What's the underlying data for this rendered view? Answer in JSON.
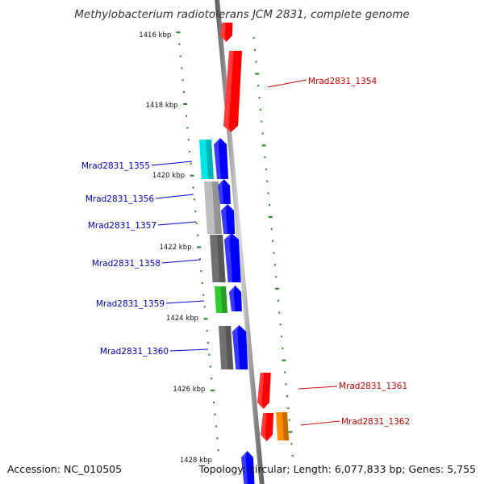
{
  "title": "Methylobacterium radiotolerans JCM 2831, complete genome",
  "accession": "Accession: NC_010505",
  "topology": "Topology: circular; Length: 6,077,833 bp; Genes: 5,755",
  "colors": {
    "backbone": "#8a8a8a",
    "tick": "#2e8b2e",
    "forward_gene": "#0000ff",
    "reverse_gene": "#ff0000",
    "label_forward": "#0000cc",
    "label_reverse": "#cc0000",
    "cog_cyan": "#00e5e5",
    "cog_lightgray": "#bdbdbd",
    "cog_darkgray": "#707070",
    "cog_green": "#2ecc2e",
    "cog_orange": "#ff8c00"
  },
  "scale_labels": [
    "1416 kbp",
    "1418 kbp",
    "1420 kbp",
    "1422 kbp",
    "1424 kbp",
    "1426 kbp",
    "1428 kbp"
  ],
  "gene_labels": [
    {
      "id": "Mrad2831_1354",
      "strand": "reverse"
    },
    {
      "id": "Mrad2831_1355",
      "strand": "forward"
    },
    {
      "id": "Mrad2831_1356",
      "strand": "forward"
    },
    {
      "id": "Mrad2831_1357",
      "strand": "forward"
    },
    {
      "id": "Mrad2831_1358",
      "strand": "forward"
    },
    {
      "id": "Mrad2831_1359",
      "strand": "forward"
    },
    {
      "id": "Mrad2831_1360",
      "strand": "forward"
    },
    {
      "id": "Mrad2831_1361",
      "strand": "reverse"
    },
    {
      "id": "Mrad2831_1362",
      "strand": "reverse"
    }
  ]
}
